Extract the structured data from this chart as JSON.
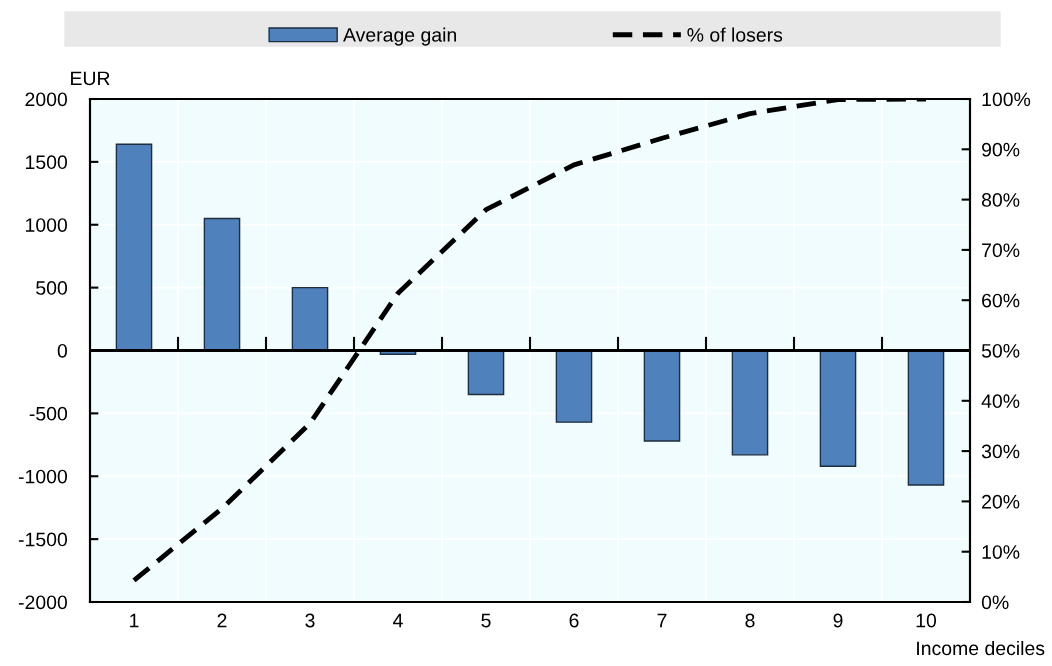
{
  "chart_data": {
    "type": "bar",
    "categories": [
      "1",
      "2",
      "3",
      "4",
      "5",
      "6",
      "7",
      "8",
      "9",
      "10"
    ],
    "series": [
      {
        "name": "Average gain",
        "color": "#4f81bd",
        "values": [
          1640,
          1050,
          500,
          -30,
          -350,
          -570,
          -720,
          -830,
          -920,
          -1070
        ]
      },
      {
        "name": "% of losers",
        "type": "line",
        "axis": "y2",
        "color": "#000000",
        "line_style": "dashed",
        "values": [
          4.3,
          18.6,
          35.5,
          61.4,
          78,
          86.9,
          92.2,
          97.1,
          99.9,
          100
        ]
      }
    ],
    "ylabel": "EUR",
    "xlabel": "Income deciles",
    "ylim": [
      -2000,
      2000
    ],
    "yticks": [
      -2000,
      -1500,
      -1000,
      -500,
      0,
      500,
      1000,
      1500,
      2000
    ],
    "y2lim": [
      0,
      100
    ],
    "y2ticks": [
      {
        "value": 0,
        "label": "0%"
      },
      {
        "value": 10,
        "label": "10%"
      },
      {
        "value": 20,
        "label": "20%"
      },
      {
        "value": 30,
        "label": "30%"
      },
      {
        "value": 40,
        "label": "40%"
      },
      {
        "value": 50,
        "label": "50%"
      },
      {
        "value": 60,
        "label": "60%"
      },
      {
        "value": 70,
        "label": "70%"
      },
      {
        "value": 80,
        "label": "80%"
      },
      {
        "value": 90,
        "label": "90%"
      },
      {
        "value": 100,
        "label": "100%"
      }
    ],
    "grid": true,
    "legend": "top"
  }
}
